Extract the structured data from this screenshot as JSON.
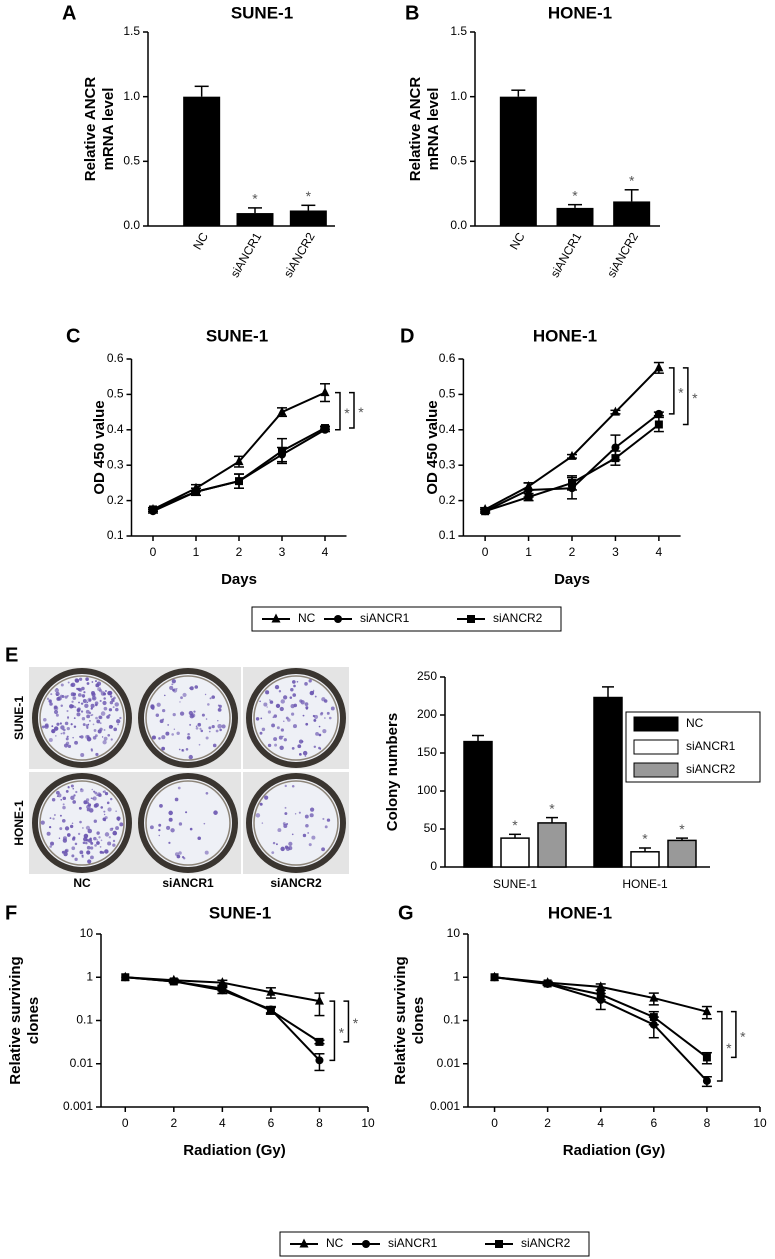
{
  "colony_plates": {
    "panel": "E",
    "rows": [
      "SUNE-1",
      "HONE-1"
    ],
    "columns": [
      "NC",
      "siANCR1",
      "siANCR2"
    ]
  },
  "chart_data": [
    {
      "type": "bar",
      "panel": "A",
      "title": "SUNE-1",
      "ylabel": [
        "Relative ANCR",
        "mRNA level"
      ],
      "categories": [
        "NC",
        "siANCR1",
        "siANCR2"
      ],
      "values": [
        1.0,
        0.1,
        0.12
      ],
      "errors": [
        0.08,
        0.04,
        0.04
      ],
      "color": "#000000",
      "ylim": [
        0,
        1.5
      ],
      "yticks": [
        {
          "value": 0,
          "label": "0.0"
        },
        0.5,
        {
          "value": 1,
          "label": "1.0"
        },
        1.5
      ],
      "annotations": [
        "*",
        "*"
      ]
    },
    {
      "type": "bar",
      "panel": "B",
      "title": "HONE-1",
      "ylabel": [
        "Relative ANCR",
        "mRNA level"
      ],
      "categories": [
        "NC",
        "siANCR1",
        "siANCR2"
      ],
      "values": [
        1.0,
        0.14,
        0.19
      ],
      "errors": [
        0.05,
        0.025,
        0.09
      ],
      "color": "#000000",
      "ylim": [
        0,
        1.5
      ],
      "yticks": [
        {
          "value": 0,
          "label": "0.0"
        },
        0.5,
        {
          "value": 1,
          "label": "1.0"
        },
        1.5
      ],
      "annotations": [
        "*",
        "*"
      ]
    },
    {
      "type": "line",
      "panel": "C",
      "title": "SUNE-1",
      "xlabel": "Days",
      "ylabel": [
        "OD 450 value"
      ],
      "x": [
        0,
        1,
        2,
        3,
        4
      ],
      "xlim": [
        -0.5,
        4.5
      ],
      "xticks": [
        0,
        1,
        2,
        3,
        4
      ],
      "ylim": [
        0.1,
        0.6
      ],
      "yticks": [
        0.1,
        0.2,
        0.3,
        0.4,
        0.5,
        0.6
      ],
      "series": [
        {
          "name": "NC",
          "color": "#000000",
          "marker": "triangle",
          "values": [
            0.175,
            0.235,
            0.31,
            0.45,
            0.505
          ],
          "errors": [
            0.005,
            0.01,
            0.015,
            0.012,
            0.025
          ]
        },
        {
          "name": "siANCR1",
          "color": "#000000",
          "marker": "circle",
          "values": [
            0.17,
            0.225,
            0.255,
            0.33,
            0.4
          ],
          "errors": [
            0.005,
            0.01,
            0.02,
            0.02,
            0.005
          ]
        },
        {
          "name": "siANCR2",
          "color": "#000000",
          "marker": "square",
          "values": [
            0.175,
            0.225,
            0.255,
            0.34,
            0.405
          ],
          "errors": [
            0.005,
            0.01,
            0.02,
            0.035,
            0.005
          ]
        }
      ],
      "annotations": [
        "*",
        "*"
      ]
    },
    {
      "type": "line",
      "panel": "D",
      "title": "HONE-1",
      "xlabel": "Days",
      "ylabel": [
        "OD 450 value"
      ],
      "x": [
        0,
        1,
        2,
        3,
        4
      ],
      "xlim": [
        -0.5,
        4.5
      ],
      "xticks": [
        0,
        1,
        2,
        3,
        4
      ],
      "ylim": [
        0.1,
        0.6
      ],
      "yticks": [
        0.1,
        0.2,
        0.3,
        0.4,
        0.5,
        0.6
      ],
      "series": [
        {
          "name": "NC",
          "color": "#000000",
          "marker": "triangle",
          "values": [
            0.175,
            0.24,
            0.325,
            0.45,
            0.575
          ],
          "errors": [
            0.005,
            0.01,
            0.005,
            0.005,
            0.015
          ]
        },
        {
          "name": "siANCR1",
          "color": "#000000",
          "marker": "circle",
          "values": [
            0.17,
            0.23,
            0.235,
            0.35,
            0.445
          ],
          "errors": [
            0.005,
            0.02,
            0.03,
            0.035,
            0.005
          ]
        },
        {
          "name": "siANCR2",
          "color": "#000000",
          "marker": "square",
          "values": [
            0.17,
            0.21,
            0.25,
            0.32,
            0.415
          ],
          "errors": [
            0.005,
            0.01,
            0.02,
            0.02,
            0.02
          ]
        }
      ],
      "annotations": [
        "*",
        "*"
      ]
    },
    {
      "type": "grouped_bar",
      "ylabel": [
        "Colony numbers"
      ],
      "categories": [
        "SUNE-1",
        "HONE-1"
      ],
      "series": [
        {
          "name": "NC",
          "color": "#000000",
          "values": [
            165,
            223
          ],
          "errors": [
            8,
            14
          ]
        },
        {
          "name": "siANCR1",
          "color": "#ffffff",
          "values": [
            38,
            20
          ],
          "errors": [
            5,
            5
          ]
        },
        {
          "name": "siANCR2",
          "color": "#999999",
          "values": [
            58,
            35
          ],
          "errors": [
            7,
            3
          ]
        }
      ],
      "ylim": [
        0,
        250
      ],
      "yticks": [
        0,
        50,
        100,
        150,
        200,
        250
      ],
      "legend": "upper right",
      "annotations": [
        "*",
        "*",
        "*",
        "*"
      ]
    },
    {
      "type": "line",
      "panel": "F",
      "title": "SUNE-1",
      "xlabel": "Radiation (Gy)",
      "ylabel": [
        "Relative surviving",
        "clones"
      ],
      "log_y": true,
      "x": [
        0,
        2,
        4,
        6,
        8
      ],
      "xlim": [
        -1,
        10
      ],
      "xticks": [
        0,
        2,
        4,
        6,
        8,
        10
      ],
      "ylim": [
        0.001,
        10
      ],
      "yticks": [
        0.001,
        0.01,
        0.1,
        1,
        10
      ],
      "series": [
        {
          "name": "NC",
          "color": "#000000",
          "marker": "triangle",
          "values": [
            1,
            0.85,
            0.75,
            0.45,
            0.28
          ],
          "errors": [
            0,
            0.05,
            0.1,
            0.12,
            0.15
          ]
        },
        {
          "name": "siANCR1",
          "color": "#000000",
          "marker": "circle",
          "values": [
            1,
            0.8,
            0.5,
            0.18,
            0.012
          ],
          "errors": [
            0,
            0.05,
            0.08,
            0.03,
            0.005
          ]
        },
        {
          "name": "siANCR2",
          "color": "#000000",
          "marker": "square",
          "values": [
            1,
            0.8,
            0.55,
            0.17,
            0.032
          ],
          "errors": [
            0,
            0.05,
            0.06,
            0.03,
            0.003
          ]
        }
      ],
      "annotations": [
        "*",
        "*"
      ]
    },
    {
      "type": "line",
      "panel": "G",
      "title": "HONE-1",
      "xlabel": "Radiation (Gy)",
      "ylabel": [
        "Relative surviving",
        "clones"
      ],
      "log_y": true,
      "x": [
        0,
        2,
        4,
        6,
        8
      ],
      "xlim": [
        -1,
        10
      ],
      "xticks": [
        0,
        2,
        4,
        6,
        8,
        10
      ],
      "ylim": [
        0.001,
        10
      ],
      "yticks": [
        0.001,
        0.01,
        0.1,
        1,
        10
      ],
      "series": [
        {
          "name": "NC",
          "color": "#000000",
          "marker": "triangle",
          "values": [
            1,
            0.75,
            0.6,
            0.33,
            0.16
          ],
          "errors": [
            0,
            0.05,
            0.1,
            0.1,
            0.05
          ]
        },
        {
          "name": "siANCR1",
          "color": "#000000",
          "marker": "circle",
          "values": [
            1,
            0.7,
            0.3,
            0.08,
            0.004
          ],
          "errors": [
            0,
            0.05,
            0.12,
            0.04,
            0.001
          ]
        },
        {
          "name": "siANCR2",
          "color": "#000000",
          "marker": "square",
          "values": [
            1,
            0.72,
            0.4,
            0.12,
            0.014
          ],
          "errors": [
            0,
            0.05,
            0.1,
            0.04,
            0.004
          ]
        }
      ],
      "annotations": [
        "*",
        "*"
      ]
    }
  ]
}
